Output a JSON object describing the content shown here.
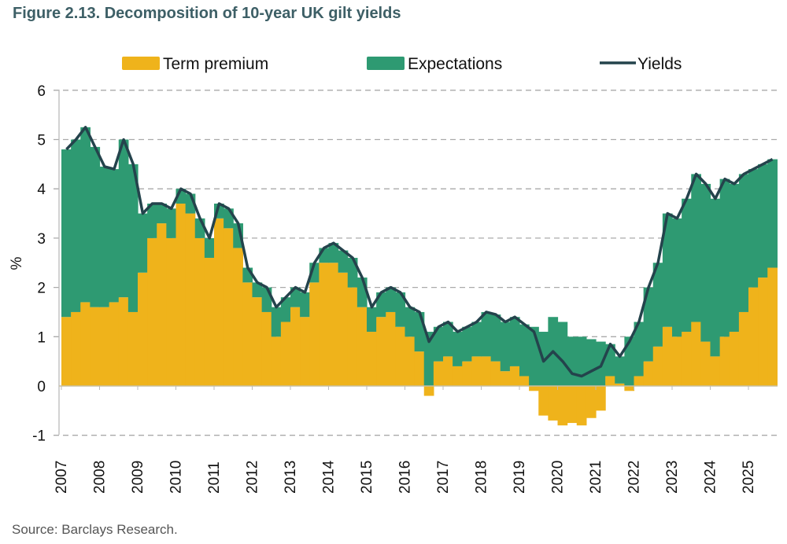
{
  "chart_data": {
    "type": "bar",
    "title": "Figure 2.13. Decomposition of 10-year UK gilt yields",
    "source": "Source: Barclays Research.",
    "xlabel": "",
    "ylabel": "%",
    "ylim": [
      -1,
      6
    ],
    "yticks": [
      "6",
      "5",
      "4",
      "3",
      "2",
      "1",
      "0",
      "-1"
    ],
    "xticks": [
      "2007",
      "2008",
      "2009",
      "2010",
      "2011",
      "2012",
      "2013",
      "2014",
      "2015",
      "2016",
      "2017",
      "2018",
      "2019",
      "2020",
      "2021",
      "2022",
      "2023",
      "2024",
      "2025"
    ],
    "grid": true,
    "legend_position": "top",
    "legend": [
      "Term premium",
      "Expectations",
      "Yields"
    ],
    "colors": {
      "term_premium": "#efb31b",
      "expectations": "#2e9a72",
      "yields": "#24434c",
      "title": "#3d5f66"
    },
    "x": [
      2007.0,
      2007.25,
      2007.5,
      2007.75,
      2008.0,
      2008.25,
      2008.5,
      2008.75,
      2009.0,
      2009.25,
      2009.5,
      2009.75,
      2010.0,
      2010.25,
      2010.5,
      2010.75,
      2011.0,
      2011.25,
      2011.5,
      2011.75,
      2012.0,
      2012.25,
      2012.5,
      2012.75,
      2013.0,
      2013.25,
      2013.5,
      2013.75,
      2014.0,
      2014.25,
      2014.5,
      2014.75,
      2015.0,
      2015.25,
      2015.5,
      2015.75,
      2016.0,
      2016.25,
      2016.5,
      2016.75,
      2017.0,
      2017.25,
      2017.5,
      2017.75,
      2018.0,
      2018.25,
      2018.5,
      2018.75,
      2019.0,
      2019.25,
      2019.5,
      2019.75,
      2020.0,
      2020.25,
      2020.5,
      2020.75,
      2021.0,
      2021.25,
      2021.5,
      2021.75,
      2022.0,
      2022.25,
      2022.5,
      2022.75,
      2023.0,
      2023.25,
      2023.5,
      2023.75,
      2024.0,
      2024.25,
      2024.5,
      2024.75,
      2025.0,
      2025.25,
      2025.5
    ],
    "series": [
      {
        "name": "Yields",
        "type": "line",
        "values": [
          4.8,
          5.0,
          5.25,
          4.85,
          4.45,
          4.4,
          5.0,
          4.5,
          3.5,
          3.7,
          3.7,
          3.6,
          4.0,
          3.9,
          3.4,
          3.0,
          3.7,
          3.6,
          3.3,
          2.4,
          2.1,
          2.0,
          1.6,
          1.8,
          2.0,
          1.9,
          2.5,
          2.8,
          2.9,
          2.75,
          2.6,
          2.2,
          1.6,
          1.9,
          2.0,
          1.9,
          1.6,
          1.5,
          0.9,
          1.2,
          1.3,
          1.1,
          1.2,
          1.3,
          1.5,
          1.45,
          1.3,
          1.4,
          1.25,
          1.1,
          0.5,
          0.7,
          0.5,
          0.25,
          0.2,
          0.3,
          0.4,
          0.85,
          0.6,
          0.9,
          1.3,
          2.0,
          2.5,
          3.5,
          3.4,
          3.8,
          4.3,
          4.1,
          3.8,
          4.2,
          4.1,
          4.3,
          4.4,
          4.5,
          4.6
        ]
      },
      {
        "name": "Term premium",
        "type": "bar",
        "values": [
          1.4,
          1.5,
          1.7,
          1.6,
          1.6,
          1.7,
          1.8,
          1.5,
          2.3,
          3.0,
          3.3,
          3.0,
          3.7,
          3.5,
          3.0,
          2.6,
          3.4,
          3.2,
          2.8,
          2.1,
          1.8,
          1.5,
          1.0,
          1.3,
          1.6,
          1.4,
          2.1,
          2.5,
          2.5,
          2.3,
          2.0,
          1.6,
          1.1,
          1.4,
          1.5,
          1.2,
          1.0,
          0.7,
          -0.2,
          0.5,
          0.6,
          0.4,
          0.5,
          0.6,
          0.6,
          0.5,
          0.3,
          0.4,
          0.2,
          -0.1,
          -0.6,
          -0.7,
          -0.8,
          -0.75,
          -0.8,
          -0.65,
          -0.5,
          0.2,
          0.05,
          -0.1,
          0.2,
          0.5,
          0.8,
          1.2,
          1.0,
          1.1,
          1.3,
          0.9,
          0.6,
          1.0,
          1.1,
          1.5,
          2.0,
          2.2,
          2.4
        ]
      }
    ]
  }
}
